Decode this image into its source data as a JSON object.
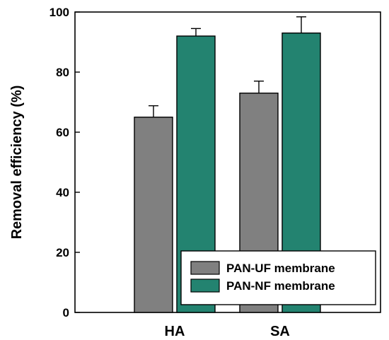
{
  "chart_data": {
    "type": "bar",
    "categories": [
      "HA",
      "SA"
    ],
    "series": [
      {
        "name": "PAN-UF membrane",
        "values": [
          65,
          73
        ],
        "errors": [
          3.8,
          4.0
        ],
        "color": "#808080"
      },
      {
        "name": "PAN-NF membrane",
        "values": [
          92,
          93
        ],
        "errors": [
          2.5,
          5.4
        ],
        "color": "#238370"
      }
    ],
    "title": "",
    "xlabel": "",
    "ylabel": "Removal efficiency (%)",
    "ylim": [
      0,
      100
    ],
    "yticks": [
      "0",
      "20",
      "40",
      "60",
      "80",
      "100"
    ],
    "grid": false,
    "legend_position": "bottom-right"
  }
}
